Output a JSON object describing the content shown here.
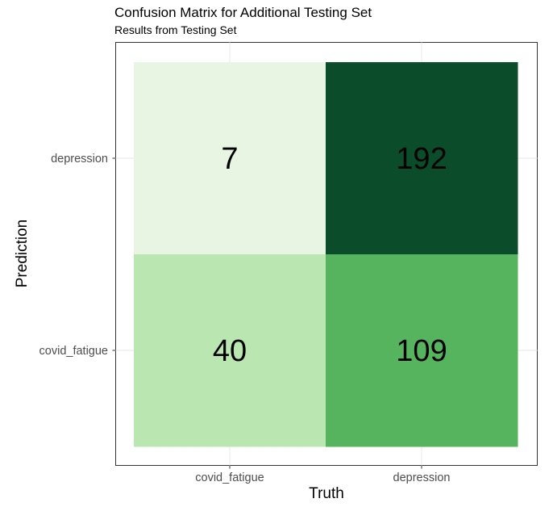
{
  "chart_data": {
    "type": "heatmap",
    "title": "Confusion Matrix for Additional Testing Set",
    "subtitle": "Results from Testing Set",
    "xlabel": "Truth",
    "ylabel": "Prediction",
    "x_categories": [
      "covid_fatigue",
      "depression"
    ],
    "y_categories": [
      "covid_fatigue",
      "depression"
    ],
    "cells": [
      {
        "truth": "covid_fatigue",
        "prediction": "depression",
        "value": 7,
        "color": "#e9f5e3"
      },
      {
        "truth": "depression",
        "prediction": "depression",
        "value": 192,
        "color": "#0b4d2a"
      },
      {
        "truth": "covid_fatigue",
        "prediction": "covid_fatigue",
        "value": 40,
        "color": "#bae6b1"
      },
      {
        "truth": "depression",
        "prediction": "covid_fatigue",
        "value": 109,
        "color": "#57b45e"
      }
    ],
    "grid": true,
    "legend": "none"
  }
}
